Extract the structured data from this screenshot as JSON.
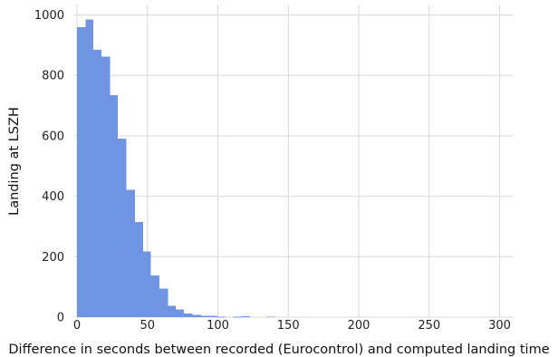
{
  "chart_data": {
    "type": "bar",
    "subtype": "histogram",
    "xlabel": "Difference in seconds between recorded (Eurocontrol) and computed landing time",
    "ylabel": "Landing at LSZH",
    "xlim": [
      -2,
      310
    ],
    "ylim": [
      0,
      1025
    ],
    "xticks": [
      0,
      50,
      100,
      150,
      200,
      250,
      300
    ],
    "yticks": [
      0,
      200,
      400,
      600,
      800,
      1000
    ],
    "grid": true,
    "color": "#6f95e2",
    "bins": [
      {
        "x0": 0,
        "x1": 6,
        "count": 960
      },
      {
        "x0": 6,
        "x1": 11.5,
        "count": 985
      },
      {
        "x0": 11.5,
        "x1": 17.5,
        "count": 885
      },
      {
        "x0": 17.5,
        "x1": 23.5,
        "count": 862
      },
      {
        "x0": 23.5,
        "x1": 29,
        "count": 735
      },
      {
        "x0": 29,
        "x1": 35,
        "count": 590
      },
      {
        "x0": 35,
        "x1": 41,
        "count": 422
      },
      {
        "x0": 41,
        "x1": 47,
        "count": 315
      },
      {
        "x0": 47,
        "x1": 52.5,
        "count": 217
      },
      {
        "x0": 52.5,
        "x1": 58.5,
        "count": 138
      },
      {
        "x0": 58.5,
        "x1": 64.5,
        "count": 95
      },
      {
        "x0": 64.5,
        "x1": 70,
        "count": 38
      },
      {
        "x0": 70,
        "x1": 76,
        "count": 25
      },
      {
        "x0": 76,
        "x1": 82,
        "count": 12
      },
      {
        "x0": 82,
        "x1": 88,
        "count": 8
      },
      {
        "x0": 88,
        "x1": 93.5,
        "count": 5
      },
      {
        "x0": 93.5,
        "x1": 99.5,
        "count": 5
      },
      {
        "x0": 99.5,
        "x1": 105.5,
        "count": 1
      },
      {
        "x0": 111,
        "x1": 117,
        "count": 1
      },
      {
        "x0": 117,
        "x1": 123,
        "count": 3
      },
      {
        "x0": 134.5,
        "x1": 140.5,
        "count": 2
      }
    ]
  }
}
